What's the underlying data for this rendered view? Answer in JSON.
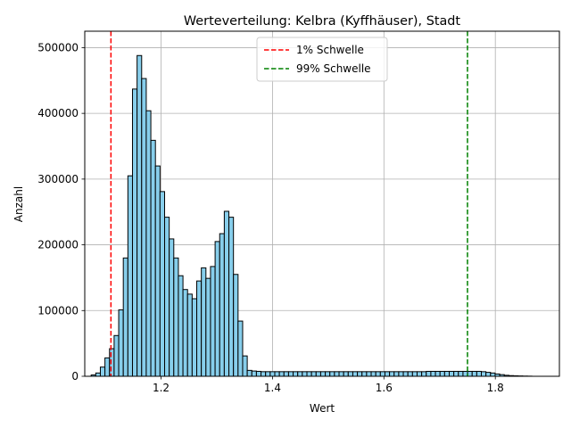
{
  "chart_data": {
    "type": "bar",
    "title": "Werteverteilung: Kelbra (Kyffhäuser), Stadt",
    "xlabel": "Wert",
    "ylabel": "Anzahl",
    "xlim": [
      1.063,
      1.915
    ],
    "ylim": [
      0,
      525000
    ],
    "xticks": [
      1.2,
      1.4,
      1.6,
      1.8
    ],
    "xtick_labels": [
      "1.2",
      "1.4",
      "1.6",
      "1.8"
    ],
    "yticks": [
      0,
      100000,
      200000,
      300000,
      400000,
      500000
    ],
    "ytick_labels": [
      "0",
      "100000",
      "200000",
      "300000",
      "400000",
      "500000"
    ],
    "grid": true,
    "legend_position": "top-center",
    "bar_color": "#87ceeb",
    "bin_start": 1.0745,
    "bin_width": 0.00824,
    "values": [
      2000,
      5000,
      14000,
      28000,
      42000,
      62000,
      101000,
      180000,
      305000,
      437000,
      488000,
      453000,
      404000,
      359000,
      320000,
      281000,
      242000,
      209000,
      180000,
      153000,
      132000,
      125000,
      118000,
      145000,
      165000,
      149000,
      167000,
      205000,
      217000,
      251000,
      242000,
      155000,
      84000,
      31000,
      9000,
      8000,
      7500,
      7000,
      7000,
      7000,
      7000,
      7000,
      7000,
      7000,
      7000,
      7000,
      7000,
      7000,
      7000,
      7000,
      7000,
      7000,
      7000,
      7000,
      7000,
      7000,
      7000,
      7000,
      7000,
      7000,
      7000,
      7000,
      7000,
      7000,
      7000,
      7000,
      7000,
      7000,
      7000,
      7000,
      7000,
      7000,
      7000,
      7500,
      7500,
      7500,
      7500,
      7500,
      7500,
      7500,
      7500,
      7500,
      7500,
      7500,
      7500,
      7000,
      6000,
      5000,
      3500,
      2500,
      1500,
      1000,
      700,
      500,
      300,
      200
    ],
    "thresholds": [
      {
        "name": "1% Schwelle",
        "value": 1.11,
        "color": "#ff0000"
      },
      {
        "name": "99% Schwelle",
        "value": 1.75,
        "color": "#008000"
      }
    ]
  }
}
